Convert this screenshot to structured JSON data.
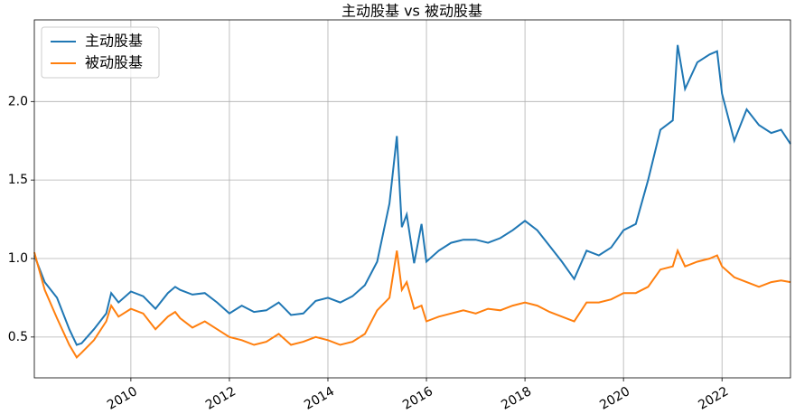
{
  "chart_data": {
    "type": "line",
    "title": "主动股基 vs 被动股基",
    "x": [
      2008.04,
      2008.25,
      2008.5,
      2008.75,
      2008.9,
      2009.0,
      2009.25,
      2009.5,
      2009.6,
      2009.75,
      2010.0,
      2010.25,
      2010.5,
      2010.75,
      2010.9,
      2011.0,
      2011.25,
      2011.5,
      2011.75,
      2012.0,
      2012.25,
      2012.5,
      2012.75,
      2013.0,
      2013.25,
      2013.5,
      2013.75,
      2014.0,
      2014.25,
      2014.5,
      2014.75,
      2015.0,
      2015.25,
      2015.4,
      2015.5,
      2015.6,
      2015.75,
      2015.9,
      2016.0,
      2016.25,
      2016.5,
      2016.75,
      2017.0,
      2017.25,
      2017.5,
      2017.75,
      2018.0,
      2018.25,
      2018.5,
      2018.75,
      2019.0,
      2019.25,
      2019.5,
      2019.75,
      2020.0,
      2020.25,
      2020.5,
      2020.75,
      2021.0,
      2021.1,
      2021.25,
      2021.5,
      2021.75,
      2021.9,
      2022.0,
      2022.25,
      2022.5,
      2022.75,
      2023.0,
      2023.2,
      2023.39
    ],
    "series": [
      {
        "name": "主动股基",
        "color": "#1f77b4",
        "values": [
          1.02,
          0.85,
          0.75,
          0.55,
          0.45,
          0.46,
          0.55,
          0.65,
          0.78,
          0.72,
          0.79,
          0.76,
          0.68,
          0.78,
          0.82,
          0.8,
          0.77,
          0.78,
          0.72,
          0.65,
          0.7,
          0.66,
          0.67,
          0.72,
          0.64,
          0.65,
          0.73,
          0.75,
          0.72,
          0.76,
          0.83,
          0.98,
          1.35,
          1.78,
          1.2,
          1.28,
          0.97,
          1.22,
          0.98,
          1.05,
          1.1,
          1.12,
          1.12,
          1.1,
          1.13,
          1.18,
          1.24,
          1.18,
          1.08,
          0.98,
          0.87,
          1.05,
          1.02,
          1.07,
          1.18,
          1.22,
          1.5,
          1.82,
          1.88,
          2.36,
          2.08,
          2.25,
          2.3,
          2.32,
          2.05,
          1.75,
          1.95,
          1.85,
          1.8,
          1.82,
          1.73
        ]
      },
      {
        "name": "被动股基",
        "color": "#ff7f0e",
        "values": [
          1.04,
          0.8,
          0.62,
          0.45,
          0.37,
          0.4,
          0.48,
          0.6,
          0.7,
          0.63,
          0.68,
          0.65,
          0.55,
          0.63,
          0.66,
          0.62,
          0.56,
          0.6,
          0.55,
          0.5,
          0.48,
          0.45,
          0.47,
          0.52,
          0.45,
          0.47,
          0.5,
          0.48,
          0.45,
          0.47,
          0.52,
          0.67,
          0.75,
          1.05,
          0.8,
          0.85,
          0.68,
          0.7,
          0.6,
          0.63,
          0.65,
          0.67,
          0.65,
          0.68,
          0.67,
          0.7,
          0.72,
          0.7,
          0.66,
          0.63,
          0.6,
          0.72,
          0.72,
          0.74,
          0.78,
          0.78,
          0.82,
          0.93,
          0.95,
          1.05,
          0.95,
          0.98,
          1.0,
          1.02,
          0.95,
          0.88,
          0.85,
          0.82,
          0.85,
          0.86,
          0.85
        ]
      }
    ],
    "xlim": [
      2008.04,
      2023.39
    ],
    "xticks": [
      2010,
      2012,
      2014,
      2016,
      2018,
      2020,
      2022
    ],
    "ylim": [
      0.24,
      2.52
    ],
    "yticks": [
      0.5,
      {
        "value": 1,
        "label": "1.0"
      },
      1.5,
      {
        "value": 2,
        "label": "2.0"
      }
    ],
    "grid": true,
    "legend": "upper left"
  }
}
